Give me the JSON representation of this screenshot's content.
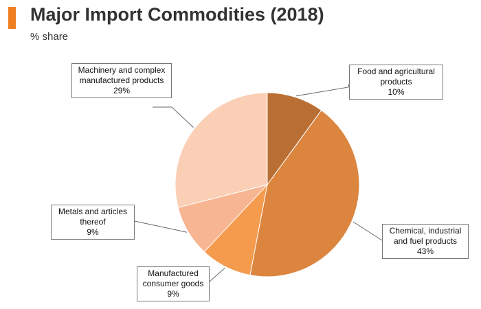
{
  "header": {
    "title": "Major Import Commodities (2018)",
    "subtitle": "% share",
    "accent_color": "#f07f22"
  },
  "chart_data": {
    "type": "pie",
    "title": "Major Import Commodities (2018)",
    "subtitle": "% share",
    "start_angle_deg": 0,
    "direction": "clockwise",
    "slices": [
      {
        "label": "Food and agricultural products",
        "value": 10,
        "value_label": "10%",
        "color": "#b96f34"
      },
      {
        "label": "Chemical, industrial and fuel products",
        "value": 43,
        "value_label": "43%",
        "color": "#db853f"
      },
      {
        "label": "Manufactured consumer goods",
        "value": 9,
        "value_label": "9%",
        "color": "#f59b4e"
      },
      {
        "label": "Metals and articles thereof",
        "value": 9,
        "value_label": "9%",
        "color": "#f7b592"
      },
      {
        "label": "Machinery and complex manufactured products",
        "value": 29,
        "value_label": "29%",
        "color": "#fbcfb5"
      }
    ]
  }
}
